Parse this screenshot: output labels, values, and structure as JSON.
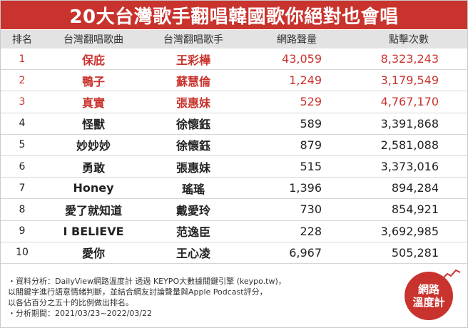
{
  "title": "20大台灣歌手翻唱韓國歌你絕對也會唱",
  "columns": [
    "排名",
    "台灣翻唱歌曲",
    "台灣翻唱歌手",
    "網路聲量",
    "點擊次數"
  ],
  "rows": [
    {
      "rank": "1",
      "song": "保庇",
      "singer": "王彩樺",
      "volume": "43,059",
      "clicks": "8,323,243",
      "highlight": true
    },
    {
      "rank": "2",
      "song": "鴨子",
      "singer": "蘇慧倫",
      "volume": "1,249",
      "clicks": "3,179,549",
      "highlight": true
    },
    {
      "rank": "3",
      "song": "真實",
      "singer": "張惠妹",
      "volume": "529",
      "clicks": "4,767,170",
      "highlight": true
    },
    {
      "rank": "4",
      "song": "怪獸",
      "singer": "徐懷鈺",
      "volume": "589",
      "clicks": "3,391,868",
      "highlight": false
    },
    {
      "rank": "5",
      "song": "妙妙妙",
      "singer": "徐懷鈺",
      "volume": "879",
      "clicks": "2,581,088",
      "highlight": false
    },
    {
      "rank": "6",
      "song": "勇敢",
      "singer": "張惠妹",
      "volume": "515",
      "clicks": "3,373,016",
      "highlight": false
    },
    {
      "rank": "7",
      "song": "Honey",
      "singer": "瑤瑤",
      "volume": "1,396",
      "clicks": "894,284",
      "highlight": false
    },
    {
      "rank": "8",
      "song": "愛了就知道",
      "singer": "戴愛玲",
      "volume": "730",
      "clicks": "854,921",
      "highlight": false
    },
    {
      "rank": "9",
      "song": "I BELIEVE",
      "singer": "范逸臣",
      "volume": "228",
      "clicks": "3,692,985",
      "highlight": false
    },
    {
      "rank": "10",
      "song": "愛你",
      "singer": "王心凌",
      "volume": "6,967",
      "clicks": "505,281",
      "highlight": false
    }
  ],
  "footnote": {
    "line1": "・資料分析：DailyView網路溫度計 透過 KEYPO大數據關鍵引擎 (keypo.tw)，",
    "line2": "以關鍵字進行語意情緒判斷，並結合網友討論聲量與Apple Podcast評分，",
    "line3": "以各佔百分之五十的比例做出排名。",
    "line4": "・分析期間：2021/03/23~2022/03/22"
  },
  "badge": {
    "line1": "網路",
    "line2": "溫度計"
  },
  "colors": {
    "accent": "#c9332e",
    "header_bg": "#e3e3e3"
  }
}
